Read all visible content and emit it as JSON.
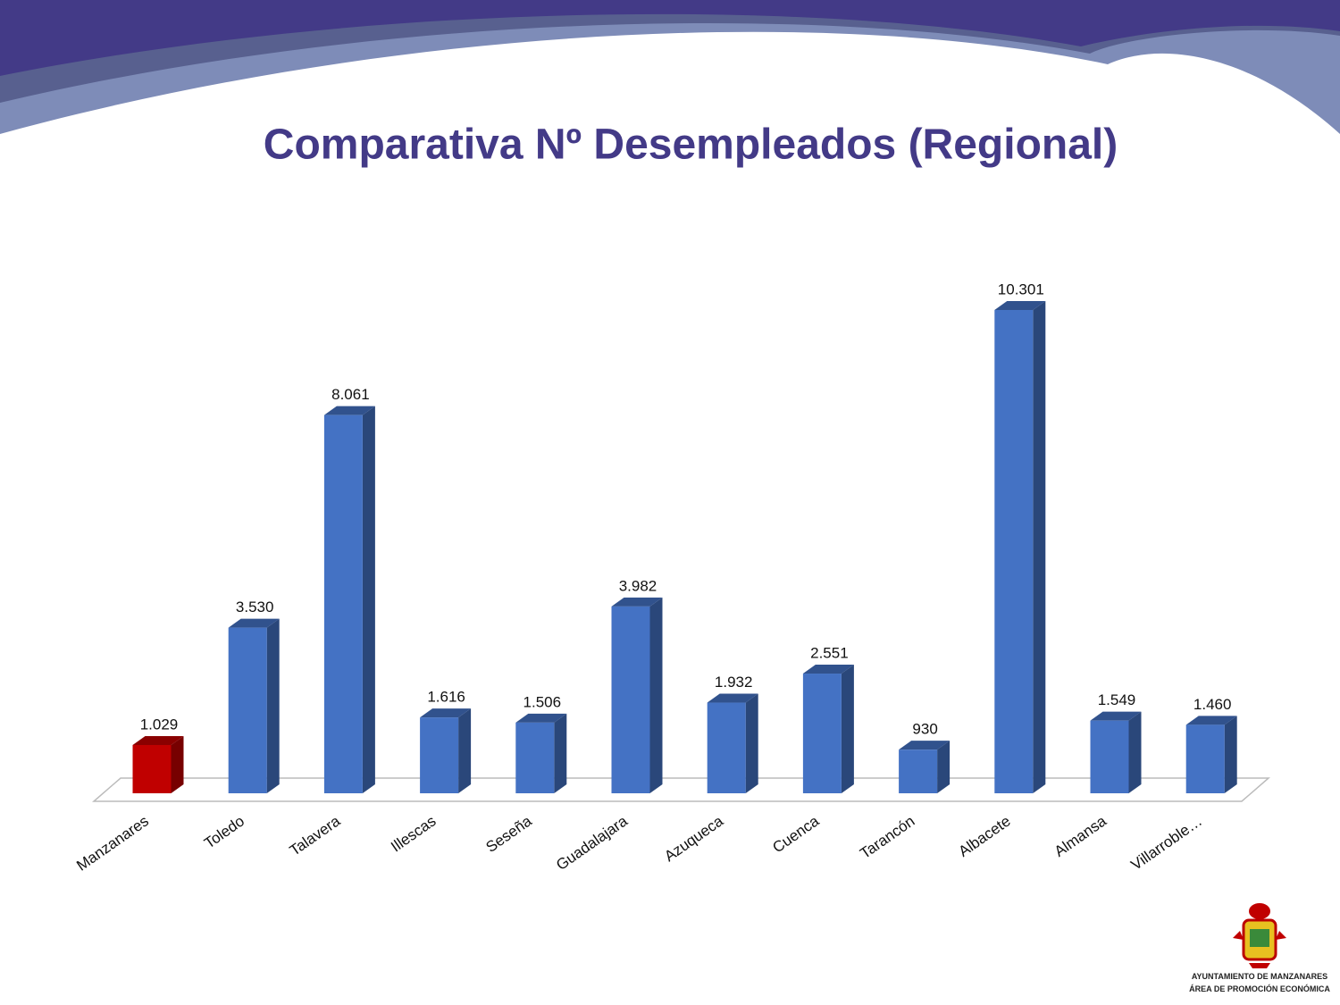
{
  "chart_data": {
    "type": "bar3d",
    "title": "Comparativa Nº Desempleados (Regional)",
    "categories": [
      "Manzanares",
      "Toledo",
      "Talavera",
      "Illescas",
      "Seseña",
      "Guadalajara",
      "Azuqueca",
      "Cuenca",
      "Tarancón",
      "Albacete",
      "Almansa",
      "Villarroble…"
    ],
    "values": [
      1029,
      3530,
      8061,
      1616,
      1506,
      3982,
      1932,
      2551,
      930,
      10301,
      1549,
      1460
    ],
    "value_labels": [
      "1.029",
      "3.530",
      "8.061",
      "1.616",
      "1.506",
      "3.982",
      "1.932",
      "2.551",
      "930",
      "10.301",
      "1.549",
      "1.460"
    ],
    "colors": [
      "#c00000",
      "#4472c4",
      "#4472c4",
      "#4472c4",
      "#4472c4",
      "#4472c4",
      "#4472c4",
      "#4472c4",
      "#4472c4",
      "#4472c4",
      "#4472c4",
      "#4472c4"
    ]
  },
  "footer": {
    "lines": [
      "AYUNTAMIENTO DE MANZANARES",
      "ÁREA DE PROMOCIÓN ECONÓMICA"
    ]
  }
}
